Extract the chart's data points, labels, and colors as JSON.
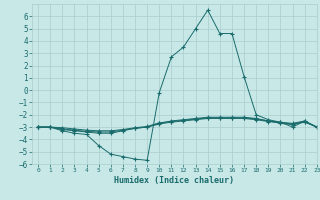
{
  "x": [
    0,
    1,
    2,
    3,
    4,
    5,
    6,
    7,
    8,
    9,
    10,
    11,
    12,
    13,
    14,
    15,
    16,
    17,
    18,
    19,
    20,
    21,
    22,
    23
  ],
  "line1": [
    -3.0,
    -3.0,
    -3.3,
    -3.5,
    -3.6,
    -4.5,
    -5.2,
    -5.4,
    -5.6,
    -5.7,
    -0.2,
    2.7,
    3.5,
    5.0,
    6.5,
    4.6,
    4.6,
    1.1,
    -2.0,
    -2.4,
    -2.6,
    -3.0,
    -2.5,
    -3.0
  ],
  "line2": [
    -3.0,
    -3.0,
    -3.2,
    -3.3,
    -3.4,
    -3.5,
    -3.5,
    -3.3,
    -3.1,
    -3.0,
    -2.7,
    -2.5,
    -2.4,
    -2.3,
    -2.2,
    -2.2,
    -2.2,
    -2.2,
    -2.3,
    -2.5,
    -2.7,
    -2.8,
    -2.6,
    -3.0
  ],
  "line3": [
    -3.0,
    -3.0,
    -3.15,
    -3.25,
    -3.35,
    -3.4,
    -3.4,
    -3.25,
    -3.1,
    -3.0,
    -2.75,
    -2.6,
    -2.5,
    -2.4,
    -2.3,
    -2.3,
    -2.3,
    -2.3,
    -2.4,
    -2.55,
    -2.65,
    -2.75,
    -2.55,
    -3.0
  ],
  "line4": [
    -3.0,
    -3.0,
    -3.05,
    -3.15,
    -3.25,
    -3.3,
    -3.3,
    -3.2,
    -3.05,
    -2.95,
    -2.65,
    -2.55,
    -2.45,
    -2.35,
    -2.25,
    -2.25,
    -2.25,
    -2.25,
    -2.35,
    -2.5,
    -2.6,
    -2.7,
    -2.5,
    -3.0
  ],
  "bg_color": "#c8e8e8",
  "grid_color": "#aacccc",
  "line_color": "#1a6b6b",
  "xlabel": "Humidex (Indice chaleur)",
  "xlim": [
    -0.5,
    23
  ],
  "ylim": [
    -6,
    7
  ],
  "yticks": [
    -6,
    -5,
    -4,
    -3,
    -2,
    -1,
    0,
    1,
    2,
    3,
    4,
    5,
    6
  ],
  "xticks": [
    0,
    1,
    2,
    3,
    4,
    5,
    6,
    7,
    8,
    9,
    10,
    11,
    12,
    13,
    14,
    15,
    16,
    17,
    18,
    19,
    20,
    21,
    22,
    23
  ]
}
